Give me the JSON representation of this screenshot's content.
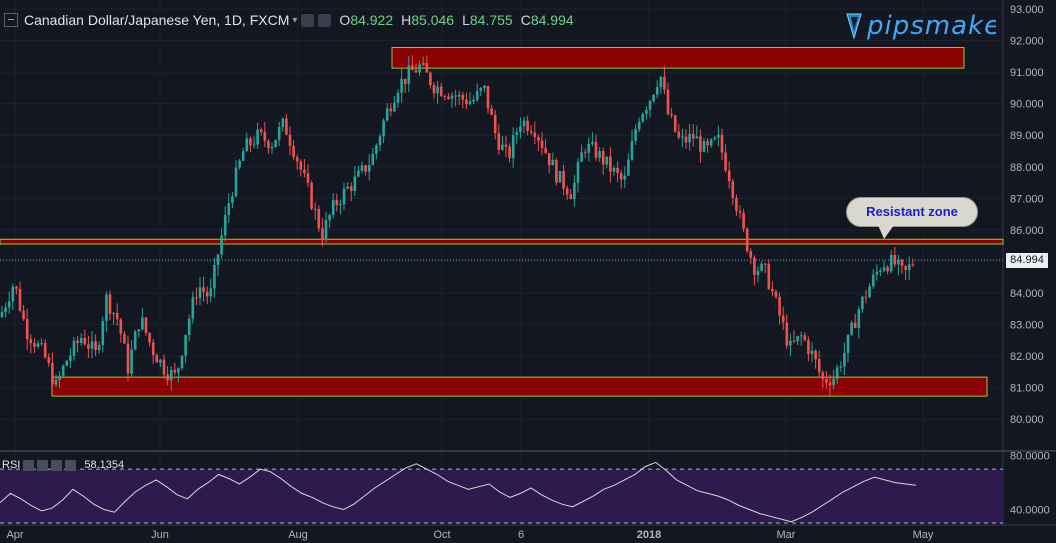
{
  "header": {
    "symbol": "Canadian Dollar/Japanese Yen, 1D, FXCM",
    "open_label": "O",
    "open": "84.922",
    "high_label": "H",
    "high": "85.046",
    "low_label": "L",
    "low": "84.755",
    "close_label": "C",
    "close": "84.994"
  },
  "logo": {
    "text": "pipsmake"
  },
  "rsi": {
    "label": "RSI",
    "value": "58.1354",
    "ticks": [
      "80.0000",
      "40.0000"
    ]
  },
  "annotation": {
    "text": "Resistant zone"
  },
  "last_price_label": "84.994",
  "colors": {
    "background": "#131722",
    "up": "#26a69a",
    "down": "#ef5350",
    "zone_fill": "#8b0000",
    "zone_border": "#9acd32",
    "rsi_band": "#2e1b4e",
    "rsi_line": "#d8d8d8"
  },
  "chart_data": [
    {
      "type": "candlestick",
      "title": "Canadian Dollar/Japanese Yen, 1D, FXCM",
      "y_ticks": [
        "93.000",
        "92.000",
        "91.000",
        "90.000",
        "89.000",
        "88.000",
        "87.000",
        "86.000",
        "85.000",
        "84.000",
        "83.000",
        "82.000",
        "81.000",
        "80.000"
      ],
      "x_ticks": [
        "Apr",
        "Jun",
        "Aug",
        "Oct",
        "6",
        "2018",
        "Mar",
        "May"
      ],
      "ylim": [
        79.0,
        93.2
      ],
      "grid": true,
      "last_price": 84.994,
      "price_path": [
        [
          0,
          83.2
        ],
        [
          14,
          84.3
        ],
        [
          26,
          82.8
        ],
        [
          44,
          82.0
        ],
        [
          56,
          81.0
        ],
        [
          66,
          81.8
        ],
        [
          82,
          82.6
        ],
        [
          96,
          82.0
        ],
        [
          106,
          83.8
        ],
        [
          118,
          83.1
        ],
        [
          128,
          81.6
        ],
        [
          140,
          83.2
        ],
        [
          152,
          82.2
        ],
        [
          166,
          81.5
        ],
        [
          176,
          81.3
        ],
        [
          186,
          82.8
        ],
        [
          198,
          84.2
        ],
        [
          210,
          83.8
        ],
        [
          218,
          85.2
        ],
        [
          230,
          87.0
        ],
        [
          244,
          88.5
        ],
        [
          258,
          88.9
        ],
        [
          272,
          88.7
        ],
        [
          284,
          89.3
        ],
        [
          296,
          88.3
        ],
        [
          310,
          87.0
        ],
        [
          322,
          85.8
        ],
        [
          334,
          86.7
        ],
        [
          346,
          87.2
        ],
        [
          358,
          87.6
        ],
        [
          372,
          88.2
        ],
        [
          386,
          89.6
        ],
        [
          398,
          90.5
        ],
        [
          410,
          90.9
        ],
        [
          420,
          91.1
        ],
        [
          434,
          90.5
        ],
        [
          448,
          90.3
        ],
        [
          460,
          90.1
        ],
        [
          472,
          90.0
        ],
        [
          484,
          90.4
        ],
        [
          496,
          88.9
        ],
        [
          508,
          88.2
        ],
        [
          520,
          89.4
        ],
        [
          534,
          89.2
        ],
        [
          546,
          88.4
        ],
        [
          558,
          87.6
        ],
        [
          572,
          87.1
        ],
        [
          584,
          88.6
        ],
        [
          596,
          88.4
        ],
        [
          610,
          87.9
        ],
        [
          624,
          87.4
        ],
        [
          638,
          89.5
        ],
        [
          650,
          90.1
        ],
        [
          660,
          90.9
        ],
        [
          668,
          89.6
        ],
        [
          680,
          88.7
        ],
        [
          694,
          88.9
        ],
        [
          706,
          88.4
        ],
        [
          718,
          88.8
        ],
        [
          730,
          87.6
        ],
        [
          742,
          86.0
        ],
        [
          754,
          84.8
        ],
        [
          766,
          84.6
        ],
        [
          778,
          83.4
        ],
        [
          790,
          82.2
        ],
        [
          802,
          82.6
        ],
        [
          814,
          81.9
        ],
        [
          822,
          81.2
        ],
        [
          834,
          81.3
        ],
        [
          846,
          82.2
        ],
        [
          858,
          83.4
        ],
        [
          870,
          84.2
        ],
        [
          882,
          84.9
        ],
        [
          894,
          84.9
        ],
        [
          904,
          84.5
        ],
        [
          914,
          85.0
        ]
      ],
      "zones": [
        {
          "from_index": 392,
          "to_index": 964,
          "top": 91.7,
          "bottom": 91.05
        },
        {
          "from_index": 0,
          "to_index": 1003,
          "top": 85.65,
          "bottom": 85.5
        },
        {
          "from_index": 52,
          "to_index": 987,
          "top": 81.3,
          "bottom": 80.7
        }
      ]
    },
    {
      "type": "line",
      "title": "RSI",
      "ylim": [
        30,
        82
      ],
      "y_ticks": [
        "80.0000",
        "40.0000"
      ],
      "bands": [
        70,
        30
      ],
      "last_value": 58.1354,
      "values": [
        45,
        52,
        48,
        43,
        39,
        41,
        47,
        55,
        50,
        44,
        40,
        38,
        46,
        53,
        58,
        62,
        57,
        51,
        48,
        55,
        60,
        66,
        63,
        59,
        64,
        70,
        68,
        63,
        57,
        52,
        49,
        45,
        42,
        40,
        44,
        50,
        56,
        61,
        66,
        71,
        74,
        70,
        66,
        61,
        58,
        55,
        57,
        59,
        53,
        49,
        52,
        56,
        51,
        47,
        44,
        42,
        46,
        50,
        55,
        58,
        62,
        66,
        72,
        75,
        69,
        62,
        58,
        54,
        52,
        50,
        47,
        43,
        40,
        37,
        35,
        33,
        31,
        34,
        38,
        43,
        48,
        53,
        57,
        61,
        64,
        62,
        60,
        59,
        58
      ]
    }
  ]
}
